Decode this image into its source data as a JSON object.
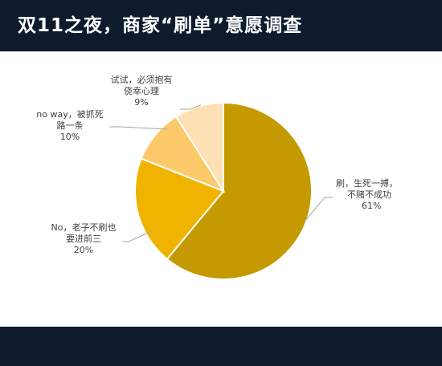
{
  "header": {
    "title": "双11之夜，商家“刷单”意愿调查"
  },
  "chart_data": {
    "type": "pie",
    "slices": [
      {
        "label_lines": [
          "刷，生死一搏，",
          "不赌不成功"
        ],
        "percent_label": "61%",
        "value": 61,
        "color": "#c49a00"
      },
      {
        "label_lines": [
          "No，老子不刷也",
          "要进前三"
        ],
        "percent_label": "20%",
        "value": 20,
        "color": "#f0b400"
      },
      {
        "label_lines": [
          "no way，被抓死",
          "路一条"
        ],
        "percent_label": "10%",
        "value": 10,
        "color": "#fbc96a"
      },
      {
        "label_lines": [
          "试试，必须抱有",
          "侥幸心理"
        ],
        "percent_label": "9%",
        "value": 9,
        "color": "#fde0b4"
      }
    ]
  }
}
